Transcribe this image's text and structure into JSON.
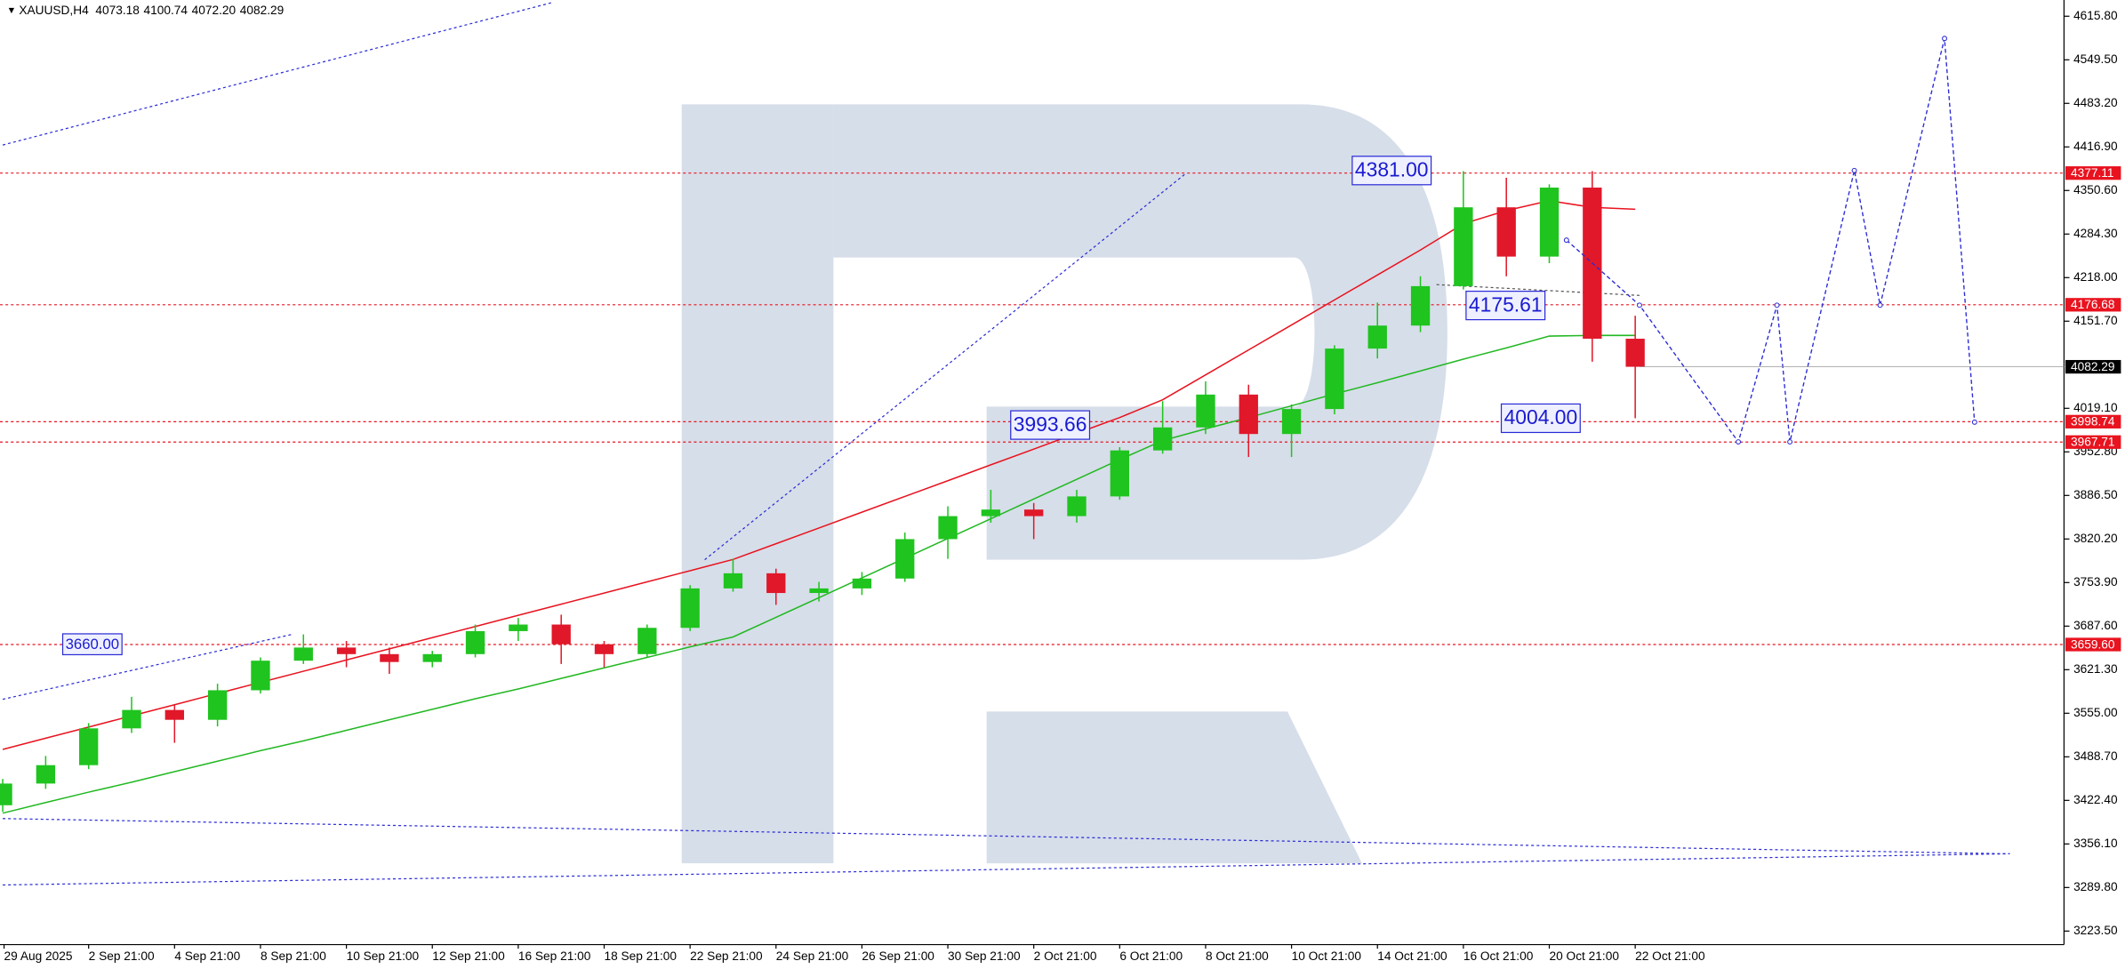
{
  "chart_data": {
    "type": "candlestick",
    "header": {
      "symbol": "XAUUSD,H4",
      "ohlc": [
        "4073.18",
        "4100.74",
        "4072.20",
        "4082.29"
      ]
    },
    "categories": [
      "29 Aug 2025",
      null,
      "2 Sep 21:00",
      null,
      "4 Sep 21:00",
      null,
      "8 Sep 21:00",
      null,
      "10 Sep 21:00",
      null,
      "12 Sep 21:00",
      null,
      "16 Sep 21:00",
      null,
      "18 Sep 21:00",
      null,
      "22 Sep 21:00",
      null,
      "24 Sep 21:00",
      null,
      "26 Sep 21:00",
      null,
      "30 Sep 21:00",
      null,
      "2 Oct 21:00",
      null,
      "6 Oct 21:00",
      null,
      "8 Oct 21:00",
      null,
      "10 Oct 21:00",
      null,
      "14 Oct 21:00",
      null,
      "16 Oct 21:00",
      null,
      "20 Oct 21:00",
      null,
      "22 Oct 21:00"
    ],
    "open": [
      3415,
      3448,
      3476,
      3532,
      3560,
      3545,
      3590,
      3635,
      3655,
      3645,
      3633,
      3645,
      3680,
      3690,
      3660,
      3645,
      3685,
      3745,
      3768,
      3738,
      3745,
      3760,
      3820,
      3855,
      3865,
      3855,
      3885,
      3955,
      3990,
      4040,
      3980,
      4018,
      4110,
      4145,
      4205,
      4325,
      4250,
      4355,
      4125
    ],
    "high": [
      3455,
      3490,
      3540,
      3580,
      3568,
      3600,
      3640,
      3675,
      3665,
      3655,
      3650,
      3690,
      3700,
      3705,
      3665,
      3690,
      3750,
      3790,
      3775,
      3755,
      3770,
      3830,
      3870,
      3895,
      3875,
      3895,
      3960,
      4030,
      4060,
      4055,
      4025,
      4115,
      4180,
      4220,
      4380,
      4370,
      4360,
      4380,
      4160
    ],
    "low": [
      3405,
      3440,
      3470,
      3525,
      3510,
      3535,
      3585,
      3630,
      3625,
      3615,
      3625,
      3640,
      3665,
      3630,
      3625,
      3640,
      3680,
      3740,
      3720,
      3725,
      3735,
      3755,
      3790,
      3845,
      3820,
      3845,
      3880,
      3950,
      3980,
      3945,
      3945,
      4010,
      4095,
      4135,
      4200,
      4220,
      4240,
      4090,
      4004
    ],
    "close": [
      3448,
      3476,
      3532,
      3560,
      3545,
      3590,
      3635,
      3655,
      3645,
      3633,
      3645,
      3680,
      3690,
      3660,
      3645,
      3685,
      3745,
      3768,
      3738,
      3745,
      3760,
      3820,
      3855,
      3865,
      3855,
      3885,
      3955,
      3990,
      4040,
      3980,
      4018,
      4110,
      4145,
      4205,
      4325,
      4250,
      4355,
      4125,
      4082.29
    ],
    "up_color": "#1fc41f",
    "down_color": "#e0182a",
    "overlays": [
      {
        "color": "#e8131f",
        "values": [
          3500,
          3517,
          3534,
          3551,
          3568,
          3585,
          3602,
          3619,
          3636,
          3653,
          3670,
          3687,
          3704,
          3721,
          3738,
          3755,
          3772,
          3789,
          3813,
          3837,
          3861,
          3885,
          3909,
          3933,
          3957,
          3981,
          4005,
          4032,
          4070,
          4108,
          4146,
          4184,
          4222,
          4260,
          4300,
          4320,
          4335,
          4325,
          4322
        ]
      },
      {
        "color": "#22b822",
        "values": [
          3403,
          3419,
          3435,
          3450,
          3466,
          3482,
          3498,
          3513,
          3529,
          3545,
          3561,
          3577,
          3592,
          3608,
          3624,
          3640,
          3656,
          3671,
          3701,
          3731,
          3761,
          3791,
          3821,
          3851,
          3881,
          3911,
          3941,
          3970,
          3988,
          4005,
          4023,
          4041,
          4058,
          4076,
          4094,
          4111,
          4129,
          4130,
          4130
        ]
      }
    ],
    "forecast": {
      "color": "#2b2bd6",
      "x": [
        36.4,
        38.1,
        40.4,
        41.3,
        41.6,
        43.1,
        43.7,
        45.2,
        45.9
      ],
      "values": [
        4275,
        4176,
        3968,
        4176,
        3968,
        4381,
        4176,
        4582,
        3998
      ]
    },
    "levels": {
      "color": "#e8131f",
      "values": [
        4377.11,
        4176.68,
        3998.74,
        3967.71,
        {
          "value": 3659.6,
          "label": "3659.60"
        }
      ]
    },
    "current_price": 4082.29,
    "annotations": [
      {
        "value": 4381,
        "label": "4381.00"
      },
      {
        "value": 4175.61,
        "label": "4175.61"
      },
      {
        "value": 3993.66,
        "label": "3993.66"
      },
      {
        "value": 4004,
        "label": "4004.00"
      },
      {
        "value": 3660,
        "label": "3660.00"
      }
    ],
    "ylim": [
      3202.9,
      4640.5
    ],
    "yticks": [
      {
        "value": 4615.8,
        "label": "4615.80"
      },
      {
        "value": 4549.5,
        "label": "4549.50"
      },
      {
        "value": 4483.2,
        "label": "4483.20"
      },
      {
        "value": 4416.9,
        "label": "4416.90"
      },
      {
        "value": 4350.6,
        "label": "4350.60"
      },
      {
        "value": 4284.3,
        "label": "4284.30"
      },
      {
        "value": 4218,
        "label": "4218.00"
      },
      {
        "value": 4151.7,
        "label": "4151.70"
      },
      {
        "value": 4019.1,
        "label": "4019.10"
      },
      {
        "value": 3952.8,
        "label": "3952.80"
      },
      {
        "value": 3886.5,
        "label": "3886.50"
      },
      {
        "value": 3820.2,
        "label": "3820.20"
      },
      {
        "value": 3753.9,
        "label": "3753.90"
      },
      {
        "value": 3687.6,
        "label": "3687.60"
      },
      {
        "value": 3621.3,
        "label": "3621.30"
      },
      {
        "value": 3555,
        "label": "3555.00"
      },
      {
        "value": 3488.7,
        "label": "3488.70"
      },
      {
        "value": 3422.4,
        "label": "3422.40"
      },
      {
        "value": 3356.1,
        "label": "3356.10"
      },
      {
        "value": 3289.8,
        "label": "3289.80"
      },
      {
        "value": 3223.5,
        "label": "3223.50"
      }
    ],
    "grid": false
  }
}
